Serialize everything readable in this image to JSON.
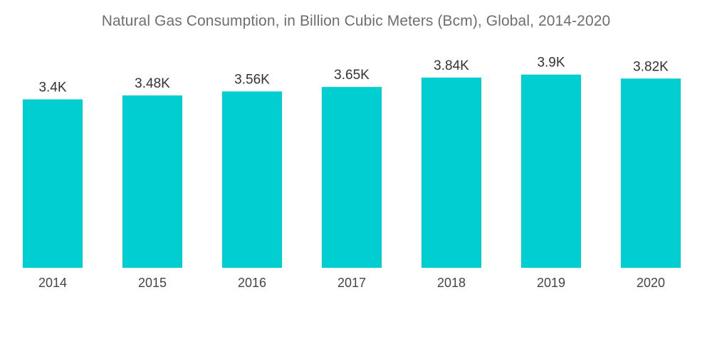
{
  "chart_data": {
    "type": "bar",
    "title": "Natural Gas Consumption, in Billion Cubic Meters (Bcm), Global, 2014-2020",
    "categories": [
      "2014",
      "2015",
      "2016",
      "2017",
      "2018",
      "2019",
      "2020"
    ],
    "values": [
      3400,
      3480,
      3560,
      3650,
      3840,
      3900,
      3820
    ],
    "data_labels": [
      "3.4K",
      "3.48K",
      "3.56K",
      "3.65K",
      "3.84K",
      "3.9K",
      "3.82K"
    ],
    "xlabel": "",
    "ylabel": "",
    "ylim": [
      0,
      4600
    ],
    "grid": false,
    "legend": "none",
    "bar_color": "#00CED1"
  }
}
